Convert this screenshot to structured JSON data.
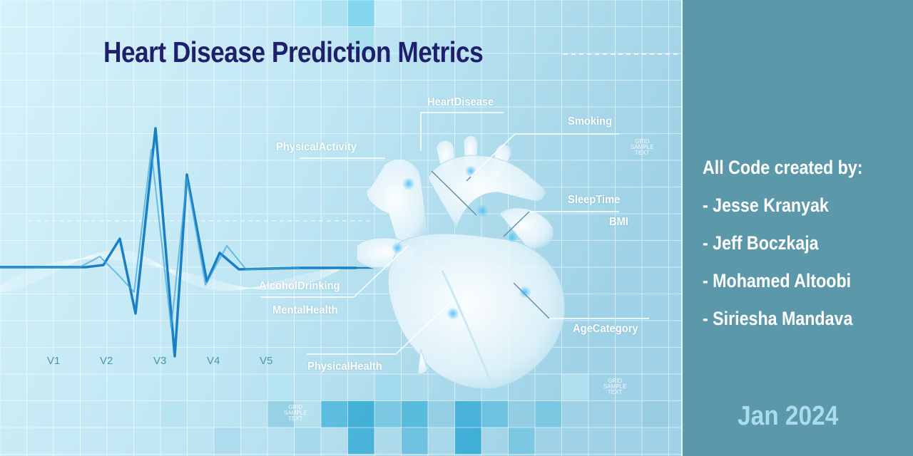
{
  "title": "Heart Disease Prediction Metrics",
  "labels": {
    "heart_disease": "HeartDisease",
    "smoking": "Smoking",
    "physical_activity": "PhysicalActivity",
    "sleep_time": "SleepTime",
    "bmi": "BMI",
    "alcohol_drinking": "AlcoholDrinking",
    "mental_health": "MentalHealth",
    "age_category": "AgeCategory",
    "physical_health": "PhysicalHealth"
  },
  "ecg_leads": [
    "V1",
    "V2",
    "V3",
    "V4",
    "V5"
  ],
  "grid_watermarks": [
    {
      "line1": "GRID",
      "line2": "SAMPLE",
      "line3": "TEXT"
    },
    {
      "line1": "GRID",
      "line2": "SAMPLE",
      "line3": "TEXT"
    },
    {
      "line1": "GRID",
      "line2": "SAMPLE",
      "line3": "TEXT"
    }
  ],
  "credits": {
    "heading": "All Code created by:",
    "authors": [
      "- Jesse Kranyak",
      "- Jeff Boczkaja",
      "- Mohamed Altoobi",
      "- Siriesha Mandava"
    ]
  },
  "date": "Jan 2024",
  "colors": {
    "background": "#bfe6f3",
    "title": "#1f1f6b",
    "panel": "#5b98aa",
    "ecg": "#1a7fc4",
    "date": "#a8dcee"
  },
  "icons": {
    "connector_arrow": "arrow-down-icon",
    "heart": "anatomical-heart-illustration"
  }
}
